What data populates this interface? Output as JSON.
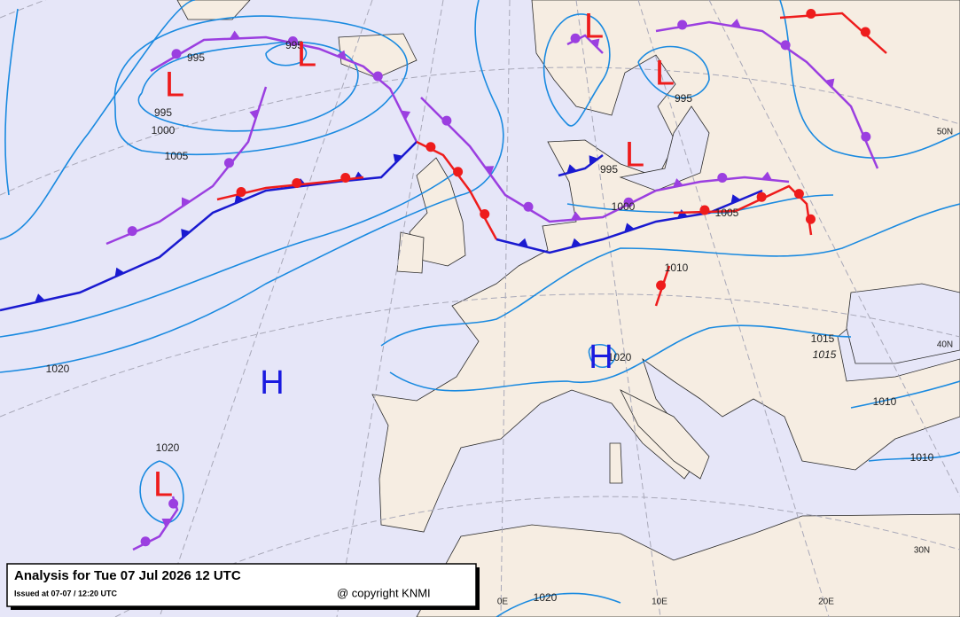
{
  "header": {
    "title": "Analysis for Tue 07 Jul 2026 12 UTC",
    "issued": "Issued at 07-07 / 12:20 UTC",
    "copyright": "@ copyright KNMI"
  },
  "isobar_labels": [
    "995",
    "995",
    "995",
    "1000",
    "1005",
    "1020",
    "1020",
    "995",
    "995",
    "1000",
    "1005",
    "1010",
    "1015",
    "1015",
    "1020",
    "1010",
    "1010",
    "1020"
  ],
  "pressure_centers": [
    "L",
    "L",
    "L",
    "L",
    "L",
    "L",
    "H",
    "H"
  ],
  "grid_labels": [
    "50N",
    "40N",
    "30N",
    "0E",
    "10E",
    "20E"
  ]
}
